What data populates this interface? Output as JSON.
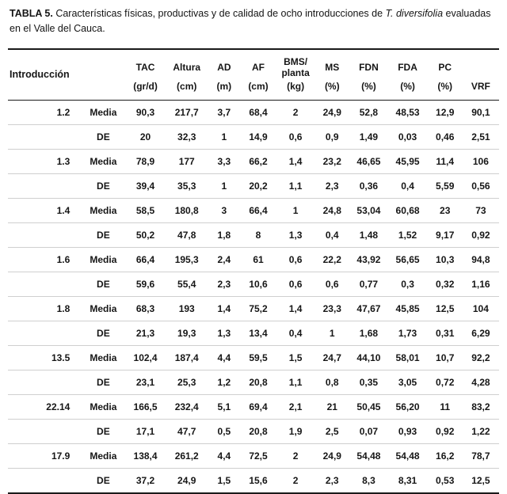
{
  "title": {
    "label": "TABLA 5.",
    "text_before_italic": " Características físicas, productivas y de calidad de ocho introducciones de ",
    "italic": "T. diversifolia",
    "text_after_italic": " evaluadas en el Valle del Cauca."
  },
  "table": {
    "col1_header": "Introducción",
    "vrf_header": "VRF",
    "columns": [
      {
        "name": "TAC",
        "unit": "(gr/d)"
      },
      {
        "name": "Altura",
        "unit": "(cm)"
      },
      {
        "name": "AD",
        "unit": "(m)"
      },
      {
        "name": "AF",
        "unit": "(cm)"
      },
      {
        "name": "BMS/",
        "name2": "planta",
        "unit": "(kg)"
      },
      {
        "name": "MS",
        "unit": "(%)"
      },
      {
        "name": "FDN",
        "unit": "(%)"
      },
      {
        "name": "FDA",
        "unit": "(%)"
      },
      {
        "name": "PC",
        "unit": "(%)"
      }
    ],
    "groups": [
      {
        "introduccion": "1.2",
        "rows": [
          {
            "stat": "Media",
            "values": [
              "90,3",
              "217,7",
              "3,7",
              "68,4",
              "2",
              "24,9",
              "52,8",
              "48,53",
              "12,9",
              "90,1"
            ]
          },
          {
            "stat": "DE",
            "values": [
              "20",
              "32,3",
              "1",
              "14,9",
              "0,6",
              "0,9",
              "1,49",
              "0,03",
              "0,46",
              "2,51"
            ]
          }
        ]
      },
      {
        "introduccion": "1.3",
        "rows": [
          {
            "stat": "Media",
            "values": [
              "78,9",
              "177",
              "3,3",
              "66,2",
              "1,4",
              "23,2",
              "46,65",
              "45,95",
              "11,4",
              "106"
            ]
          },
          {
            "stat": "DE",
            "values": [
              "39,4",
              "35,3",
              "1",
              "20,2",
              "1,1",
              "2,3",
              "0,36",
              "0,4",
              "5,59",
              "0,56"
            ]
          }
        ]
      },
      {
        "introduccion": "1.4",
        "rows": [
          {
            "stat": "Media",
            "values": [
              "58,5",
              "180,8",
              "3",
              "66,4",
              "1",
              "24,8",
              "53,04",
              "60,68",
              "23",
              "73"
            ]
          },
          {
            "stat": "DE",
            "values": [
              "50,2",
              "47,8",
              "1,8",
              "8",
              "1,3",
              "0,4",
              "1,48",
              "1,52",
              "9,17",
              "0,92"
            ]
          }
        ]
      },
      {
        "introduccion": "1.6",
        "rows": [
          {
            "stat": "Media",
            "values": [
              "66,4",
              "195,3",
              "2,4",
              "61",
              "0,6",
              "22,2",
              "43,92",
              "56,65",
              "10,3",
              "94,8"
            ]
          },
          {
            "stat": "DE",
            "values": [
              "59,6",
              "55,4",
              "2,3",
              "10,6",
              "0,6",
              "0,6",
              "0,77",
              "0,3",
              "0,32",
              "1,16"
            ]
          }
        ]
      },
      {
        "introduccion": "1.8",
        "rows": [
          {
            "stat": "Media",
            "values": [
              "68,3",
              "193",
              "1,4",
              "75,2",
              "1,4",
              "23,3",
              "47,67",
              "45,85",
              "12,5",
              "104"
            ]
          },
          {
            "stat": "DE",
            "values": [
              "21,3",
              "19,3",
              "1,3",
              "13,4",
              "0,4",
              "1",
              "1,68",
              "1,73",
              "0,31",
              "6,29"
            ]
          }
        ]
      },
      {
        "introduccion": "13.5",
        "rows": [
          {
            "stat": "Media",
            "values": [
              "102,4",
              "187,4",
              "4,4",
              "59,5",
              "1,5",
              "24,7",
              "44,10",
              "58,01",
              "10,7",
              "92,2"
            ]
          },
          {
            "stat": "DE",
            "values": [
              "23,1",
              "25,3",
              "1,2",
              "20,8",
              "1,1",
              "0,8",
              "0,35",
              "3,05",
              "0,72",
              "4,28"
            ]
          }
        ]
      },
      {
        "introduccion": "22.14",
        "rows": [
          {
            "stat": "Media",
            "values": [
              "166,5",
              "232,4",
              "5,1",
              "69,4",
              "2,1",
              "21",
              "50,45",
              "56,20",
              "11",
              "83,2"
            ]
          },
          {
            "stat": "DE",
            "values": [
              "17,1",
              "47,7",
              "0,5",
              "20,8",
              "1,9",
              "2,5",
              "0,07",
              "0,93",
              "0,92",
              "1,22"
            ]
          }
        ]
      },
      {
        "introduccion": "17.9",
        "rows": [
          {
            "stat": "Media",
            "values": [
              "138,4",
              "261,2",
              "4,4",
              "72,5",
              "2",
              "24,9",
              "54,48",
              "54,48",
              "16,2",
              "78,7"
            ]
          },
          {
            "stat": "DE",
            "values": [
              "37,2",
              "24,9",
              "1,5",
              "15,6",
              "2",
              "2,3",
              "8,3",
              "8,31",
              "0,53",
              "12,5"
            ]
          }
        ]
      }
    ]
  }
}
